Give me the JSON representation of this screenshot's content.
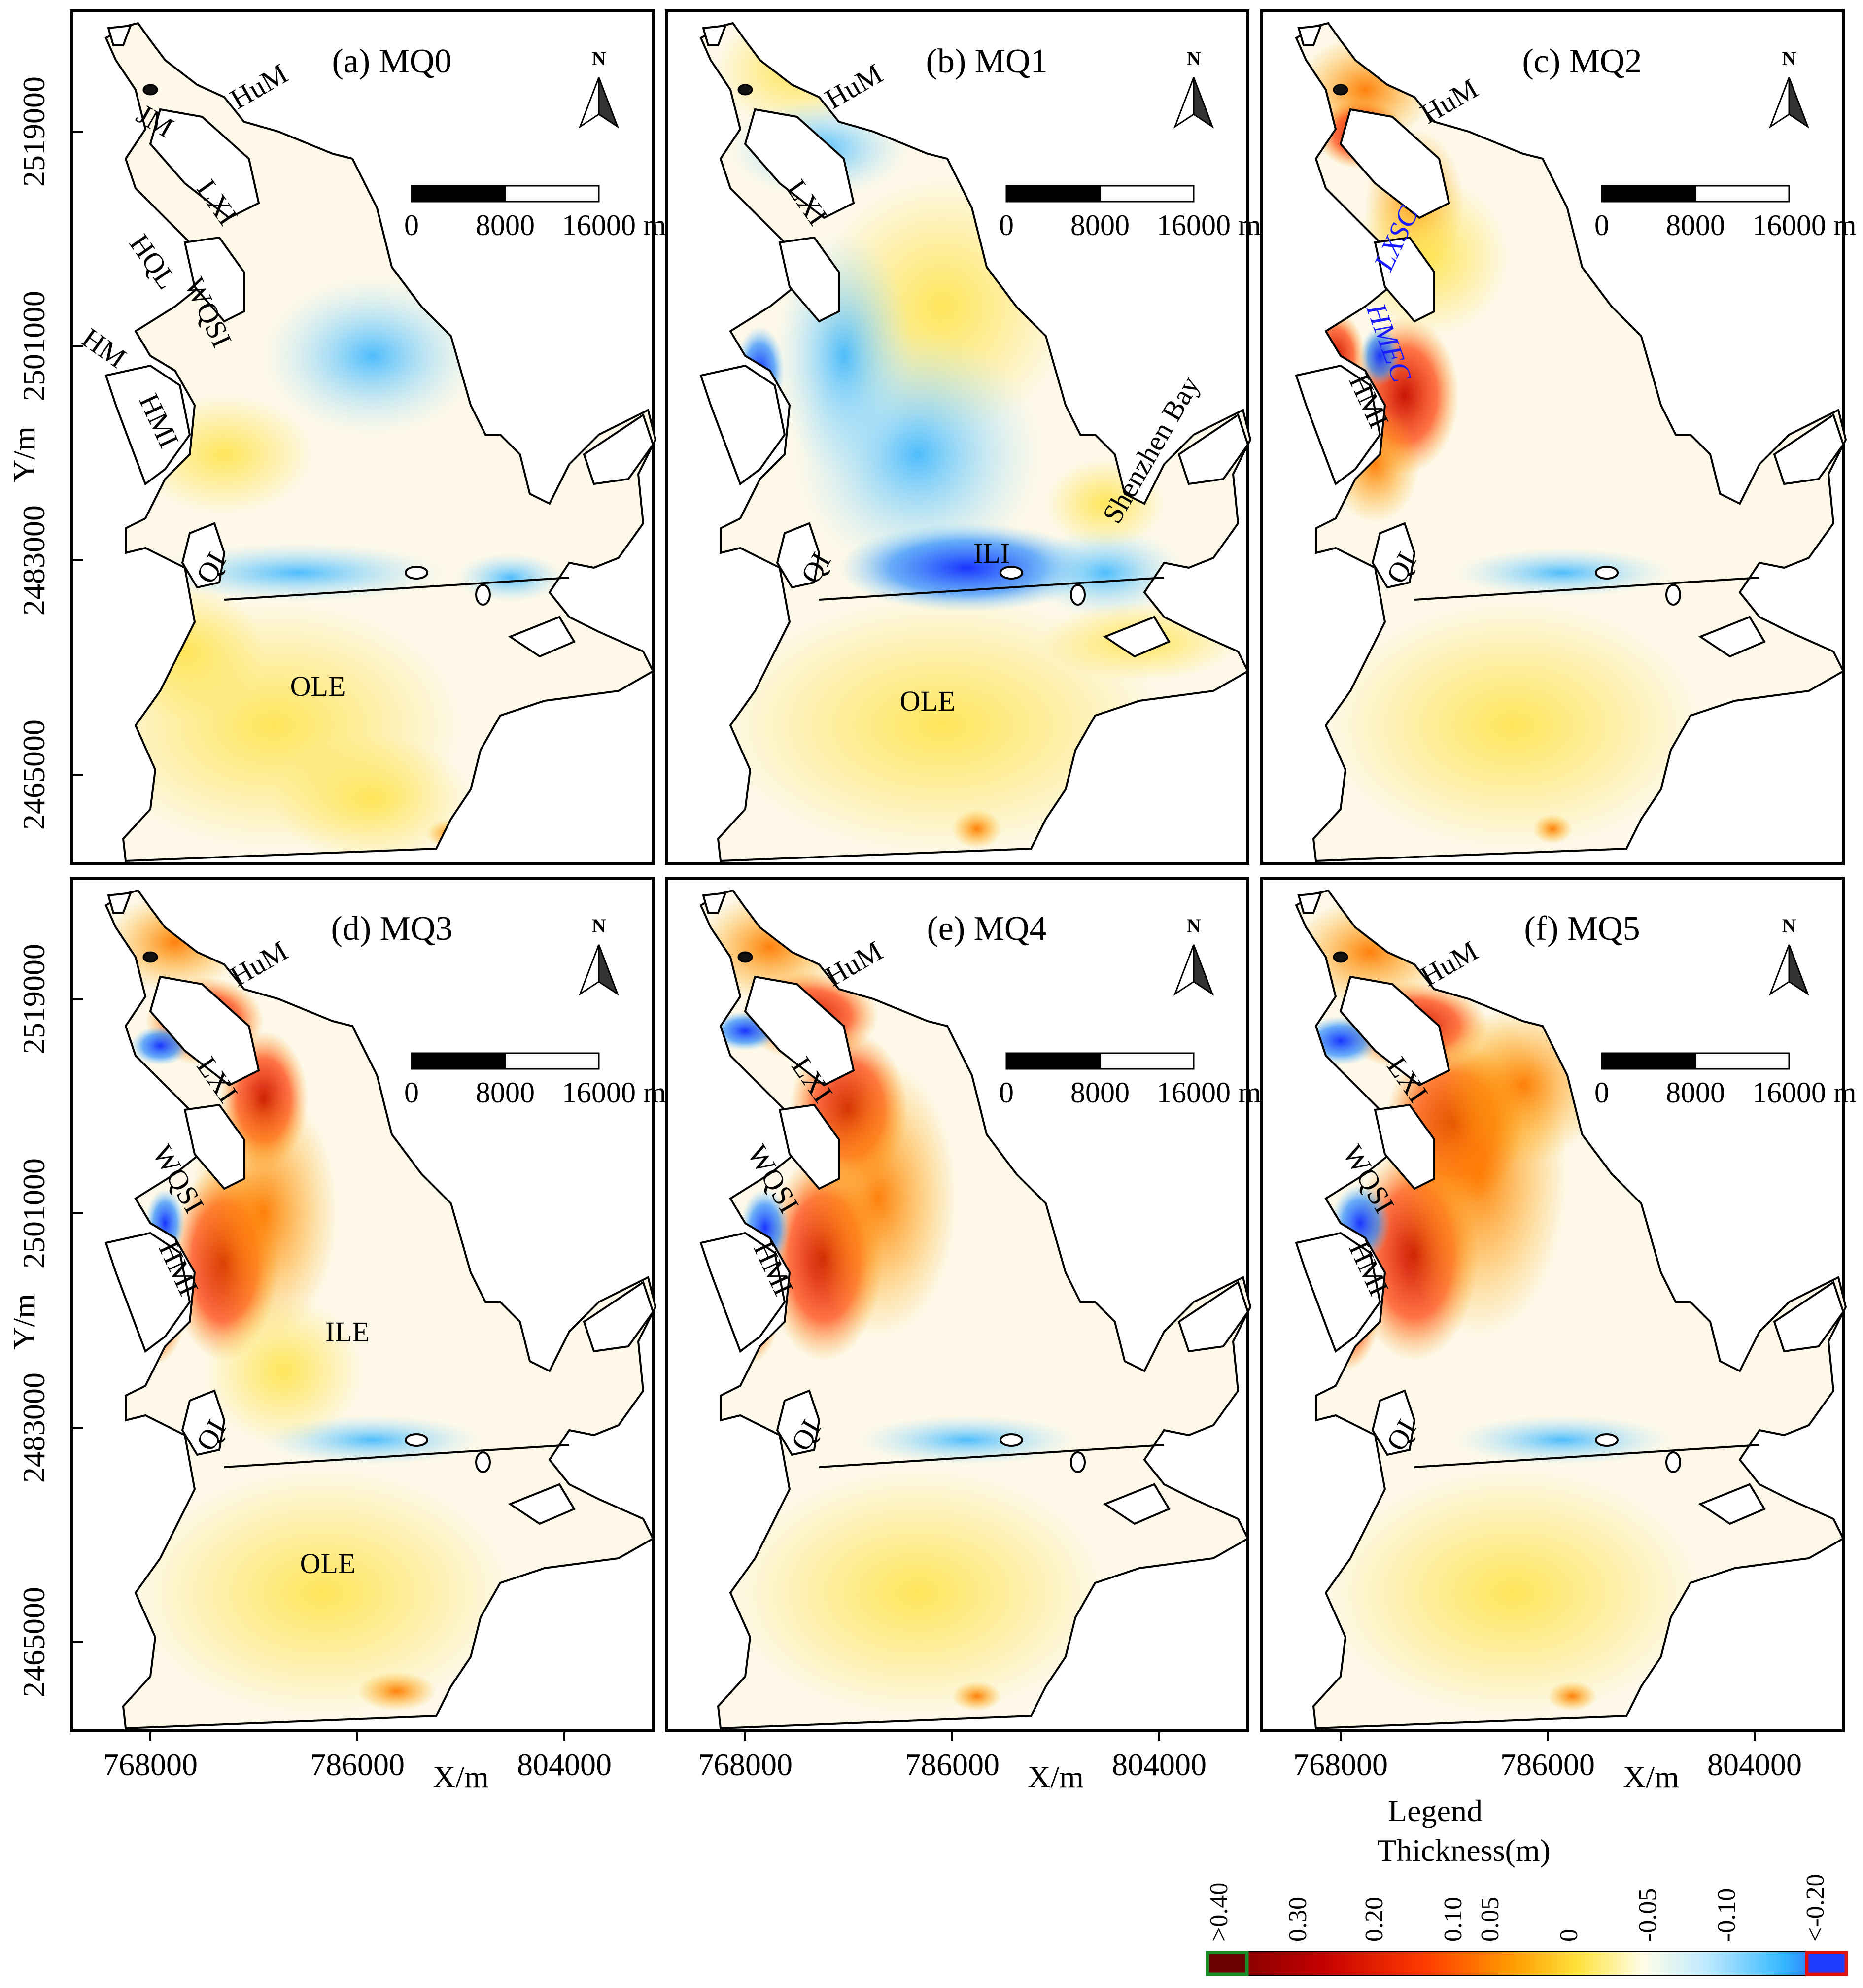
{
  "panels": [
    {
      "id": "a",
      "title": "(a) MQ0",
      "labels": [
        "HuM",
        "JM",
        "LXI",
        "HQL",
        "WQSI",
        "HM",
        "HMI",
        "QI",
        "OLE"
      ]
    },
    {
      "id": "b",
      "title": "(b) MQ1",
      "labels": [
        "HuM",
        "LXI",
        "Shenzhen Bay",
        "ILI",
        "QI",
        "OLE"
      ]
    },
    {
      "id": "c",
      "title": "(c) MQ2",
      "labels": [
        "HuM",
        "LXSC",
        "HMEC",
        "HMI",
        "QI"
      ]
    },
    {
      "id": "d",
      "title": "(d) MQ3",
      "labels": [
        "HuM",
        "LXI",
        "WQSI",
        "HMI",
        "ILE",
        "QI",
        "OLE"
      ]
    },
    {
      "id": "e",
      "title": "(e) MQ4",
      "labels": [
        "HuM",
        "LXI",
        "WQSI",
        "HMI",
        "QI"
      ]
    },
    {
      "id": "f",
      "title": "(f) MQ5",
      "labels": [
        "HuM",
        "LXI",
        "WQSI",
        "HMI",
        "QI"
      ]
    }
  ],
  "north_label": "N",
  "scale_bar": {
    "ticks": [
      "0",
      "8000",
      "16000"
    ],
    "unit": "m"
  },
  "x_axis": {
    "label": "X/m",
    "ticks": [
      "768000",
      "786000",
      "804000"
    ]
  },
  "y_axis": {
    "label": "Y/m",
    "ticks": [
      "2519000",
      "2501000",
      "2483000",
      "2465000"
    ]
  },
  "legend": {
    "title": "Legend",
    "subtitle": "Thickness(m)",
    "ticks": [
      ">0.40",
      "0.30",
      "0.20",
      "0.10",
      "0.05",
      "0",
      "-0.05",
      "-0.10",
      "<-0.20"
    ],
    "colors": [
      "#6b0000",
      "#c40000",
      "#ff2a00",
      "#ff8a00",
      "#ffd400",
      "#fffde0",
      "#cfefff",
      "#3ec4ff",
      "#1f4fff"
    ]
  },
  "colors": {
    "outline": "#000000",
    "frame": "#000000",
    "legend_low_border": "#e01010",
    "legend_high_border": "#1c8c2a"
  }
}
